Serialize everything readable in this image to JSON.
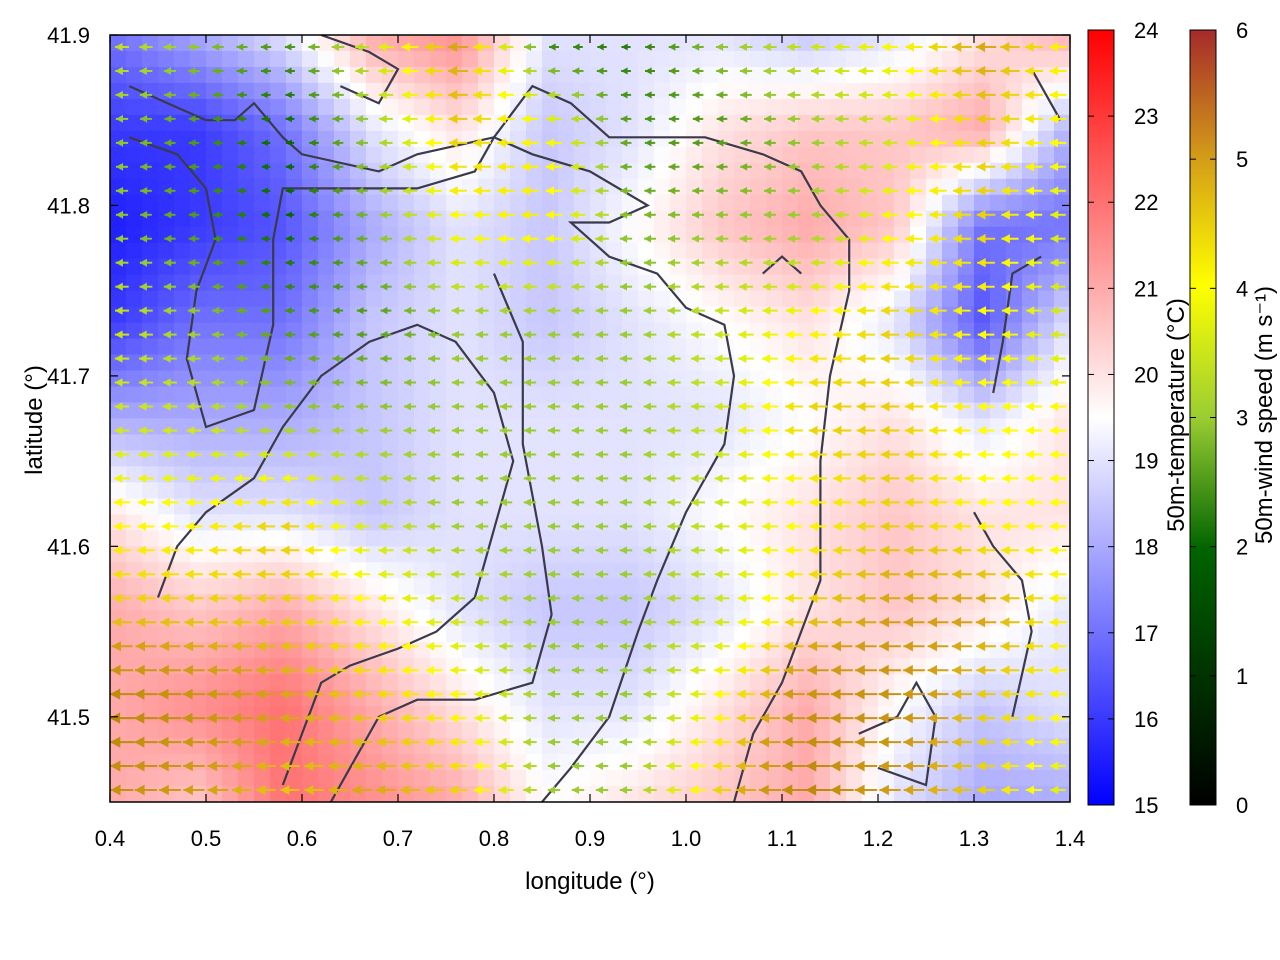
{
  "chart_data": {
    "type": "heatmap",
    "xlabel": "longitude (°)",
    "ylabel": "latitude (°)",
    "xlim": [
      0.4,
      1.4
    ],
    "ylim": [
      41.45,
      41.9
    ],
    "x_ticks": [
      "0.4",
      "0.5",
      "0.6",
      "0.7",
      "0.8",
      "0.9",
      "1.0",
      "1.1",
      "1.2",
      "1.3",
      "1.4"
    ],
    "y_ticks": [
      "41.5",
      "41.6",
      "41.7",
      "41.8",
      "41.9"
    ],
    "grid": false,
    "temperature_colorbar": {
      "label": "50m-temperature (°C)",
      "range": [
        15,
        24
      ],
      "ticks": [
        "15",
        "16",
        "17",
        "18",
        "19",
        "20",
        "21",
        "22",
        "23",
        "24"
      ],
      "colors": [
        "#0000ff",
        "#ffffff",
        "#ff0000"
      ]
    },
    "wind_colorbar": {
      "label": "50m-wind speed (m s⁻¹)",
      "range": [
        0,
        6
      ],
      "ticks": [
        "0",
        "1",
        "2",
        "3",
        "4",
        "5",
        "6"
      ],
      "colors": [
        "#000000",
        "#006400",
        "#9acd32",
        "#ffff00",
        "#d4a017",
        "#b8860b",
        "#a52a2a"
      ]
    },
    "temperature_field": [
      [
        17,
        18,
        19,
        21,
        21.5,
        19,
        19,
        19,
        18.5,
        19,
        20,
        21
      ],
      [
        16,
        16,
        17,
        19,
        20,
        18.5,
        19,
        20,
        20.5,
        20.5,
        21,
        18
      ],
      [
        15.5,
        16,
        16.5,
        18,
        19,
        18.5,
        19.5,
        20.5,
        21,
        20.5,
        17,
        17
      ],
      [
        16,
        17,
        17,
        18.5,
        19,
        18.5,
        19,
        19.5,
        20,
        19,
        16.5,
        19
      ],
      [
        18,
        18,
        18,
        18.5,
        19,
        19,
        19,
        19,
        19.5,
        20,
        19,
        20
      ],
      [
        20,
        19,
        19,
        18.5,
        19,
        19,
        19,
        19.5,
        20,
        20.5,
        20,
        20
      ],
      [
        21,
        20.5,
        21,
        20,
        19,
        18.5,
        18.5,
        19,
        20,
        20.5,
        20,
        19
      ],
      [
        21,
        21.5,
        22,
        21,
        20,
        19,
        19,
        20,
        21,
        19.5,
        18.5,
        19
      ],
      [
        21,
        20.5,
        22,
        21.5,
        21,
        19.5,
        20,
        20.5,
        21,
        19,
        18,
        18
      ]
    ],
    "wind_speed_field": [
      [
        2.5,
        2,
        1.5,
        2.5,
        4,
        1.2,
        1.2,
        2,
        2.5,
        3,
        4,
        3
      ],
      [
        2,
        1.5,
        1,
        2,
        3.5,
        3,
        1.5,
        1.5,
        2,
        2.5,
        3.5,
        3
      ],
      [
        2,
        1.5,
        1,
        1.8,
        3,
        3.2,
        1.8,
        2,
        2,
        3,
        3.5,
        2.5
      ],
      [
        2.5,
        2,
        1.5,
        1.5,
        2,
        2,
        2,
        2.5,
        3,
        3.5,
        3,
        2.5
      ],
      [
        2.5,
        2.5,
        2,
        2,
        2,
        2,
        2,
        2.5,
        3.5,
        3.5,
        3,
        3
      ],
      [
        3,
        3,
        3.5,
        2.5,
        2,
        2,
        2,
        2.5,
        3,
        3.5,
        3,
        3
      ],
      [
        3.5,
        3.5,
        3.5,
        3,
        2.5,
        2,
        2,
        2.5,
        3.5,
        4,
        4,
        3
      ],
      [
        5,
        4.5,
        4,
        3.5,
        3,
        2,
        2,
        3,
        4.5,
        4.5,
        3.5,
        3
      ],
      [
        4.5,
        4,
        3.5,
        4,
        3.5,
        2,
        2,
        3.5,
        5,
        4,
        3.5,
        2.5
      ]
    ],
    "wind_direction_deg": 180,
    "contours": [
      [
        [
          0.42,
          41.87
        ],
        [
          0.46,
          41.86
        ],
        [
          0.5,
          41.85
        ],
        [
          0.53,
          41.85
        ],
        [
          0.55,
          41.86
        ],
        [
          0.58,
          41.84
        ],
        [
          0.6,
          41.83
        ],
        [
          0.68,
          41.82
        ],
        [
          0.72,
          41.83
        ],
        [
          0.8,
          41.84
        ],
        [
          0.84,
          41.87
        ],
        [
          0.88,
          41.86
        ],
        [
          0.92,
          41.84
        ],
        [
          0.96,
          41.84
        ],
        [
          1.02,
          41.84
        ],
        [
          1.08,
          41.83
        ],
        [
          1.12,
          41.82
        ],
        [
          1.14,
          41.8
        ],
        [
          1.17,
          41.78
        ],
        [
          1.17,
          41.75
        ],
        [
          1.15,
          41.7
        ],
        [
          1.14,
          41.65
        ],
        [
          1.14,
          41.58
        ],
        [
          1.12,
          41.55
        ],
        [
          1.1,
          41.52
        ],
        [
          1.07,
          41.49
        ],
        [
          1.05,
          41.45
        ]
      ],
      [
        [
          0.42,
          41.84
        ],
        [
          0.47,
          41.83
        ],
        [
          0.5,
          41.81
        ],
        [
          0.51,
          41.78
        ],
        [
          0.49,
          41.75
        ],
        [
          0.48,
          41.71
        ],
        [
          0.5,
          41.67
        ],
        [
          0.55,
          41.68
        ],
        [
          0.57,
          41.73
        ],
        [
          0.57,
          41.78
        ],
        [
          0.58,
          41.81
        ],
        [
          0.63,
          41.81
        ],
        [
          0.68,
          41.81
        ],
        [
          0.72,
          41.81
        ],
        [
          0.78,
          41.82
        ],
        [
          0.8,
          41.84
        ],
        [
          0.84,
          41.83
        ],
        [
          0.9,
          41.82
        ],
        [
          0.96,
          41.8
        ],
        [
          0.92,
          41.79
        ],
        [
          0.88,
          41.79
        ],
        [
          0.92,
          41.77
        ],
        [
          0.97,
          41.76
        ],
        [
          1.0,
          41.74
        ],
        [
          1.04,
          41.73
        ],
        [
          1.05,
          41.7
        ],
        [
          1.04,
          41.66
        ],
        [
          1.0,
          41.62
        ],
        [
          0.97,
          41.58
        ],
        [
          0.95,
          41.55
        ],
        [
          0.92,
          41.5
        ],
        [
          0.88,
          41.47
        ],
        [
          0.85,
          41.45
        ]
      ],
      [
        [
          0.45,
          41.57
        ],
        [
          0.47,
          41.6
        ],
        [
          0.5,
          41.62
        ],
        [
          0.55,
          41.64
        ],
        [
          0.58,
          41.67
        ],
        [
          0.62,
          41.7
        ],
        [
          0.67,
          41.72
        ],
        [
          0.72,
          41.73
        ],
        [
          0.76,
          41.72
        ],
        [
          0.8,
          41.69
        ],
        [
          0.82,
          41.65
        ],
        [
          0.8,
          41.61
        ],
        [
          0.78,
          41.57
        ],
        [
          0.74,
          41.55
        ],
        [
          0.7,
          41.54
        ],
        [
          0.65,
          41.53
        ],
        [
          0.62,
          41.52
        ],
        [
          0.6,
          41.49
        ],
        [
          0.58,
          41.46
        ]
      ],
      [
        [
          0.63,
          41.45
        ],
        [
          0.66,
          41.48
        ],
        [
          0.68,
          41.5
        ],
        [
          0.72,
          41.51
        ],
        [
          0.78,
          41.51
        ],
        [
          0.84,
          41.52
        ],
        [
          0.86,
          41.56
        ],
        [
          0.85,
          41.6
        ],
        [
          0.83,
          41.66
        ],
        [
          0.83,
          41.72
        ],
        [
          0.8,
          41.76
        ]
      ],
      [
        [
          1.2,
          41.47
        ],
        [
          1.25,
          41.46
        ],
        [
          1.26,
          41.5
        ],
        [
          1.24,
          41.52
        ],
        [
          1.22,
          41.5
        ],
        [
          1.18,
          41.49
        ]
      ],
      [
        [
          1.32,
          41.69
        ],
        [
          1.33,
          41.72
        ],
        [
          1.34,
          41.76
        ],
        [
          1.37,
          41.77
        ]
      ],
      [
        [
          0.62,
          41.9
        ],
        [
          0.67,
          41.89
        ],
        [
          0.7,
          41.88
        ],
        [
          0.68,
          41.86
        ],
        [
          0.64,
          41.87
        ]
      ],
      [
        [
          1.08,
          41.76
        ],
        [
          1.1,
          41.77
        ],
        [
          1.12,
          41.76
        ]
      ],
      [
        [
          1.3,
          41.62
        ],
        [
          1.32,
          41.6
        ],
        [
          1.35,
          41.58
        ],
        [
          1.36,
          41.55
        ],
        [
          1.34,
          41.5
        ]
      ],
      [
        [
          1.36,
          41.88
        ],
        [
          1.39,
          41.85
        ]
      ]
    ]
  }
}
